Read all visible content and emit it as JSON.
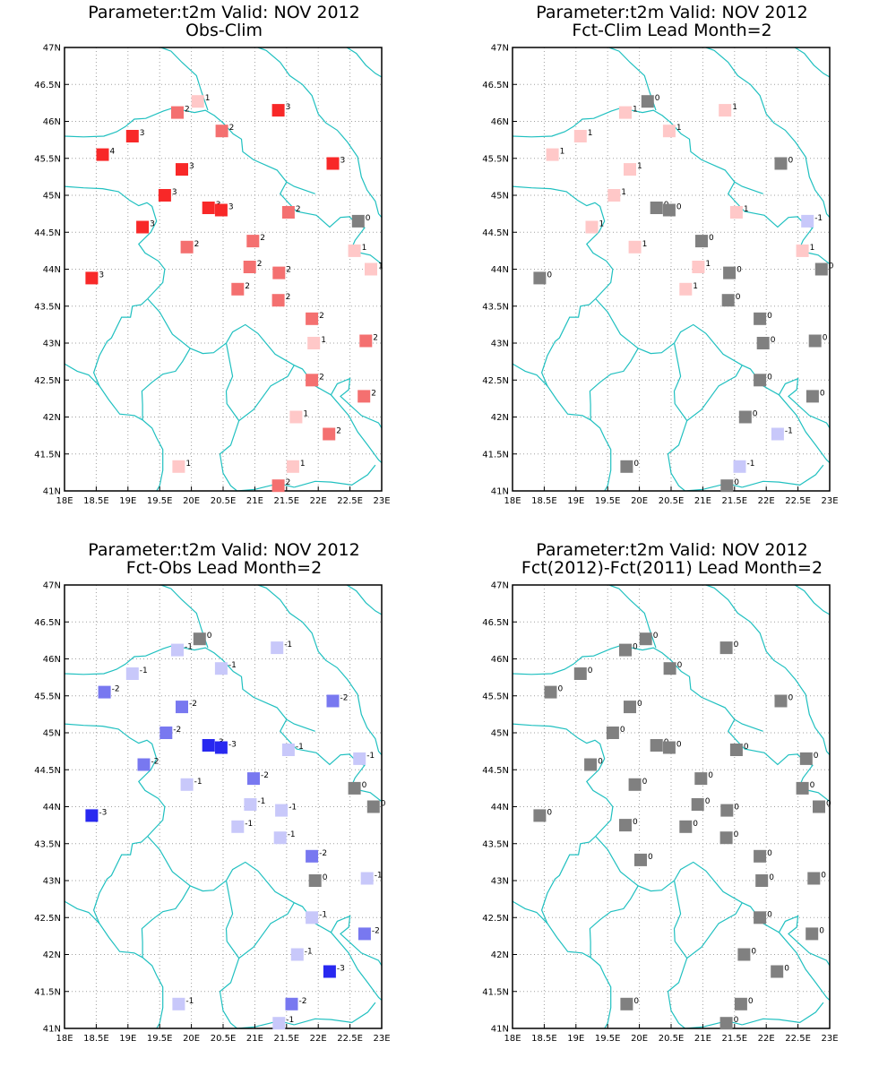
{
  "colors": {
    "coast": "#20c0c0",
    "grid": "#a0a0a0",
    "zero": "#808080",
    "pos1": "#ffc8c8",
    "pos2": "#f47070",
    "pos3": "#f82828",
    "neg1": "#c8c8fa",
    "neg2": "#7878f0",
    "neg3": "#2828f0"
  },
  "axes": {
    "x_ticks": [
      "18E",
      "18.5E",
      "19E",
      "19.5E",
      "20E",
      "20.5E",
      "21E",
      "21.5E",
      "22E",
      "22.5E",
      "23E"
    ],
    "y_ticks": [
      "41N",
      "41.5N",
      "42N",
      "42.5N",
      "43N",
      "43.5N",
      "44N",
      "44.5N",
      "45N",
      "45.5N",
      "46N",
      "46.5N",
      "47N"
    ],
    "xlim": [
      18,
      23
    ],
    "ylim": [
      41,
      47
    ],
    "grid": true
  },
  "chart_data": [
    {
      "type": "scatter",
      "title": "Parameter:t2m Valid: NOV 2012",
      "subtitle": "Obs-Clim",
      "points": [
        {
          "lon": 20.1,
          "lat": 46.27,
          "value": 1
        },
        {
          "lon": 19.78,
          "lat": 46.12,
          "value": 2
        },
        {
          "lon": 21.37,
          "lat": 46.15,
          "value": 3
        },
        {
          "lon": 19.07,
          "lat": 45.8,
          "value": 3
        },
        {
          "lon": 20.48,
          "lat": 45.87,
          "value": 2
        },
        {
          "lon": 18.6,
          "lat": 45.55,
          "value": 4
        },
        {
          "lon": 19.85,
          "lat": 45.35,
          "value": 3
        },
        {
          "lon": 22.23,
          "lat": 45.43,
          "value": 3
        },
        {
          "lon": 19.58,
          "lat": 45.0,
          "value": 3
        },
        {
          "lon": 20.27,
          "lat": 44.83,
          "value": 3
        },
        {
          "lon": 20.47,
          "lat": 44.8,
          "value": 3
        },
        {
          "lon": 21.53,
          "lat": 44.77,
          "value": 2
        },
        {
          "lon": 22.63,
          "lat": 44.65,
          "value": 0
        },
        {
          "lon": 19.23,
          "lat": 44.57,
          "value": 3
        },
        {
          "lon": 20.97,
          "lat": 44.38,
          "value": 2
        },
        {
          "lon": 19.93,
          "lat": 44.3,
          "value": 2
        },
        {
          "lon": 22.57,
          "lat": 44.25,
          "value": 1
        },
        {
          "lon": 20.92,
          "lat": 44.03,
          "value": 2
        },
        {
          "lon": 21.38,
          "lat": 43.95,
          "value": 2
        },
        {
          "lon": 22.83,
          "lat": 44.0,
          "value": 1
        },
        {
          "lon": 18.43,
          "lat": 43.88,
          "value": 3
        },
        {
          "lon": 20.73,
          "lat": 43.73,
          "value": 2
        },
        {
          "lon": 21.37,
          "lat": 43.58,
          "value": 2
        },
        {
          "lon": 21.9,
          "lat": 43.33,
          "value": 2
        },
        {
          "lon": 21.93,
          "lat": 43.0,
          "value": 1
        },
        {
          "lon": 22.75,
          "lat": 43.03,
          "value": 2
        },
        {
          "lon": 21.9,
          "lat": 42.5,
          "value": 2
        },
        {
          "lon": 22.72,
          "lat": 42.28,
          "value": 2
        },
        {
          "lon": 21.65,
          "lat": 42.0,
          "value": 1
        },
        {
          "lon": 22.17,
          "lat": 41.77,
          "value": 2
        },
        {
          "lon": 19.8,
          "lat": 41.33,
          "value": 1
        },
        {
          "lon": 21.6,
          "lat": 41.33,
          "value": 1
        },
        {
          "lon": 21.37,
          "lat": 41.07,
          "value": 2
        }
      ]
    },
    {
      "type": "scatter",
      "title": "Parameter:t2m Valid: NOV 2012",
      "subtitle": "Fct-Clim Lead Month=2",
      "points": [
        {
          "lon": 20.13,
          "lat": 46.27,
          "value": 0
        },
        {
          "lon": 19.78,
          "lat": 46.12,
          "value": 1
        },
        {
          "lon": 21.35,
          "lat": 46.15,
          "value": 1
        },
        {
          "lon": 19.07,
          "lat": 45.8,
          "value": 1
        },
        {
          "lon": 20.47,
          "lat": 45.87,
          "value": 1
        },
        {
          "lon": 18.63,
          "lat": 45.55,
          "value": 1
        },
        {
          "lon": 19.85,
          "lat": 45.35,
          "value": 1
        },
        {
          "lon": 22.23,
          "lat": 45.43,
          "value": 0
        },
        {
          "lon": 19.6,
          "lat": 45.0,
          "value": 1
        },
        {
          "lon": 20.27,
          "lat": 44.83,
          "value": 0
        },
        {
          "lon": 20.47,
          "lat": 44.8,
          "value": 0
        },
        {
          "lon": 21.53,
          "lat": 44.77,
          "value": 1
        },
        {
          "lon": 22.65,
          "lat": 44.65,
          "value": -1
        },
        {
          "lon": 19.25,
          "lat": 44.57,
          "value": 1
        },
        {
          "lon": 20.98,
          "lat": 44.38,
          "value": 0
        },
        {
          "lon": 19.93,
          "lat": 44.3,
          "value": 1
        },
        {
          "lon": 22.57,
          "lat": 44.25,
          "value": 1
        },
        {
          "lon": 20.93,
          "lat": 44.03,
          "value": 1
        },
        {
          "lon": 21.42,
          "lat": 43.95,
          "value": 0
        },
        {
          "lon": 22.87,
          "lat": 44.0,
          "value": 0
        },
        {
          "lon": 18.43,
          "lat": 43.88,
          "value": 0
        },
        {
          "lon": 20.73,
          "lat": 43.73,
          "value": 1
        },
        {
          "lon": 21.4,
          "lat": 43.58,
          "value": 0
        },
        {
          "lon": 21.9,
          "lat": 43.33,
          "value": 0
        },
        {
          "lon": 21.95,
          "lat": 43.0,
          "value": 0
        },
        {
          "lon": 22.77,
          "lat": 43.03,
          "value": 0
        },
        {
          "lon": 21.9,
          "lat": 42.5,
          "value": 0
        },
        {
          "lon": 22.73,
          "lat": 42.28,
          "value": 0
        },
        {
          "lon": 21.67,
          "lat": 42.0,
          "value": 0
        },
        {
          "lon": 22.18,
          "lat": 41.77,
          "value": -1
        },
        {
          "lon": 19.8,
          "lat": 41.33,
          "value": 0
        },
        {
          "lon": 21.58,
          "lat": 41.33,
          "value": -1
        },
        {
          "lon": 21.38,
          "lat": 41.07,
          "value": 0
        }
      ]
    },
    {
      "type": "scatter",
      "title": "Parameter:t2m Valid: NOV 2012",
      "subtitle": "Fct-Obs Lead Month=2",
      "points": [
        {
          "lon": 20.13,
          "lat": 46.27,
          "value": 0
        },
        {
          "lon": 19.78,
          "lat": 46.12,
          "value": -1
        },
        {
          "lon": 21.35,
          "lat": 46.15,
          "value": -1
        },
        {
          "lon": 19.07,
          "lat": 45.8,
          "value": -1
        },
        {
          "lon": 20.47,
          "lat": 45.87,
          "value": -1
        },
        {
          "lon": 18.63,
          "lat": 45.55,
          "value": -2
        },
        {
          "lon": 19.85,
          "lat": 45.35,
          "value": -2
        },
        {
          "lon": 22.23,
          "lat": 45.43,
          "value": -2
        },
        {
          "lon": 19.6,
          "lat": 45.0,
          "value": -2
        },
        {
          "lon": 20.27,
          "lat": 44.83,
          "value": -3
        },
        {
          "lon": 20.47,
          "lat": 44.8,
          "value": -3
        },
        {
          "lon": 21.53,
          "lat": 44.77,
          "value": -1
        },
        {
          "lon": 22.65,
          "lat": 44.65,
          "value": -1
        },
        {
          "lon": 19.25,
          "lat": 44.57,
          "value": -2
        },
        {
          "lon": 20.98,
          "lat": 44.38,
          "value": -2
        },
        {
          "lon": 19.93,
          "lat": 44.3,
          "value": -1
        },
        {
          "lon": 22.57,
          "lat": 44.25,
          "value": 0
        },
        {
          "lon": 20.93,
          "lat": 44.03,
          "value": -1
        },
        {
          "lon": 21.42,
          "lat": 43.95,
          "value": -1
        },
        {
          "lon": 22.87,
          "lat": 44.0,
          "value": 0
        },
        {
          "lon": 18.43,
          "lat": 43.88,
          "value": -3
        },
        {
          "lon": 20.73,
          "lat": 43.73,
          "value": -1
        },
        {
          "lon": 21.4,
          "lat": 43.58,
          "value": -1
        },
        {
          "lon": 21.9,
          "lat": 43.33,
          "value": -2
        },
        {
          "lon": 21.95,
          "lat": 43.0,
          "value": 0
        },
        {
          "lon": 22.77,
          "lat": 43.03,
          "value": -1
        },
        {
          "lon": 21.9,
          "lat": 42.5,
          "value": -1
        },
        {
          "lon": 22.73,
          "lat": 42.28,
          "value": -2
        },
        {
          "lon": 21.67,
          "lat": 42.0,
          "value": -1
        },
        {
          "lon": 22.18,
          "lat": 41.77,
          "value": -3
        },
        {
          "lon": 19.8,
          "lat": 41.33,
          "value": -1
        },
        {
          "lon": 21.58,
          "lat": 41.33,
          "value": -2
        },
        {
          "lon": 21.38,
          "lat": 41.07,
          "value": -1
        }
      ]
    },
    {
      "type": "scatter",
      "title": "Parameter:t2m Valid: NOV 2012",
      "subtitle": "Fct(2012)-Fct(2011) Lead Month=2",
      "points": [
        {
          "lon": 20.1,
          "lat": 46.27,
          "value": 0
        },
        {
          "lon": 19.78,
          "lat": 46.12,
          "value": 0
        },
        {
          "lon": 21.37,
          "lat": 46.15,
          "value": 0
        },
        {
          "lon": 19.07,
          "lat": 45.8,
          "value": 0
        },
        {
          "lon": 20.48,
          "lat": 45.87,
          "value": 0
        },
        {
          "lon": 18.6,
          "lat": 45.55,
          "value": 0
        },
        {
          "lon": 19.85,
          "lat": 45.35,
          "value": 0
        },
        {
          "lon": 22.23,
          "lat": 45.43,
          "value": 0
        },
        {
          "lon": 19.58,
          "lat": 45.0,
          "value": 0
        },
        {
          "lon": 20.27,
          "lat": 44.83,
          "value": 0
        },
        {
          "lon": 20.47,
          "lat": 44.8,
          "value": 0
        },
        {
          "lon": 21.53,
          "lat": 44.77,
          "value": 0
        },
        {
          "lon": 22.63,
          "lat": 44.65,
          "value": 0
        },
        {
          "lon": 19.23,
          "lat": 44.57,
          "value": 0
        },
        {
          "lon": 20.97,
          "lat": 44.38,
          "value": 0
        },
        {
          "lon": 19.93,
          "lat": 44.3,
          "value": 0
        },
        {
          "lon": 22.57,
          "lat": 44.25,
          "value": 0
        },
        {
          "lon": 20.92,
          "lat": 44.03,
          "value": 0
        },
        {
          "lon": 21.38,
          "lat": 43.95,
          "value": 0
        },
        {
          "lon": 22.83,
          "lat": 44.0,
          "value": 0
        },
        {
          "lon": 18.43,
          "lat": 43.88,
          "value": 0
        },
        {
          "lon": 19.78,
          "lat": 43.75,
          "value": 0
        },
        {
          "lon": 20.73,
          "lat": 43.73,
          "value": 0
        },
        {
          "lon": 21.37,
          "lat": 43.58,
          "value": 0
        },
        {
          "lon": 21.9,
          "lat": 43.33,
          "value": 0
        },
        {
          "lon": 20.02,
          "lat": 43.28,
          "value": 0
        },
        {
          "lon": 21.93,
          "lat": 43.0,
          "value": 0
        },
        {
          "lon": 22.75,
          "lat": 43.03,
          "value": 0
        },
        {
          "lon": 21.9,
          "lat": 42.5,
          "value": 0
        },
        {
          "lon": 22.72,
          "lat": 42.28,
          "value": 0
        },
        {
          "lon": 21.65,
          "lat": 42.0,
          "value": 0
        },
        {
          "lon": 22.17,
          "lat": 41.77,
          "value": 0
        },
        {
          "lon": 19.8,
          "lat": 41.33,
          "value": 0
        },
        {
          "lon": 21.6,
          "lat": 41.33,
          "value": 0
        },
        {
          "lon": 21.37,
          "lat": 41.07,
          "value": 0
        }
      ]
    }
  ]
}
